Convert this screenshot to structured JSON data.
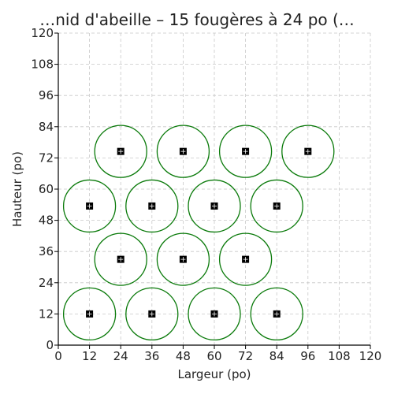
{
  "chart_data": {
    "type": "scatter",
    "title": "…nid d'abeille – 15 fougères à 24 po (…",
    "xlabel": "Largeur (po)",
    "ylabel": "Hauteur (po)",
    "xlim": [
      0,
      120
    ],
    "ylim": [
      0,
      120
    ],
    "xticks": [
      0,
      12,
      24,
      36,
      48,
      60,
      72,
      84,
      96,
      108,
      120
    ],
    "yticks": [
      0,
      12,
      24,
      36,
      48,
      60,
      72,
      84,
      96,
      108,
      120
    ],
    "grid": true,
    "circle_diameter": 20,
    "colors": {
      "circle": "#0a7a0a",
      "marker": "#000000",
      "grid": "#c8c8c8"
    },
    "points": [
      {
        "x": 12,
        "y": 12
      },
      {
        "x": 36,
        "y": 12
      },
      {
        "x": 60,
        "y": 12
      },
      {
        "x": 84,
        "y": 12
      },
      {
        "x": 24,
        "y": 33
      },
      {
        "x": 48,
        "y": 33
      },
      {
        "x": 72,
        "y": 33
      },
      {
        "x": 12,
        "y": 53.5
      },
      {
        "x": 36,
        "y": 53.5
      },
      {
        "x": 60,
        "y": 53.5
      },
      {
        "x": 84,
        "y": 53.5
      },
      {
        "x": 24,
        "y": 74.5
      },
      {
        "x": 48,
        "y": 74.5
      },
      {
        "x": 72,
        "y": 74.5
      },
      {
        "x": 96,
        "y": 74.5
      }
    ]
  }
}
